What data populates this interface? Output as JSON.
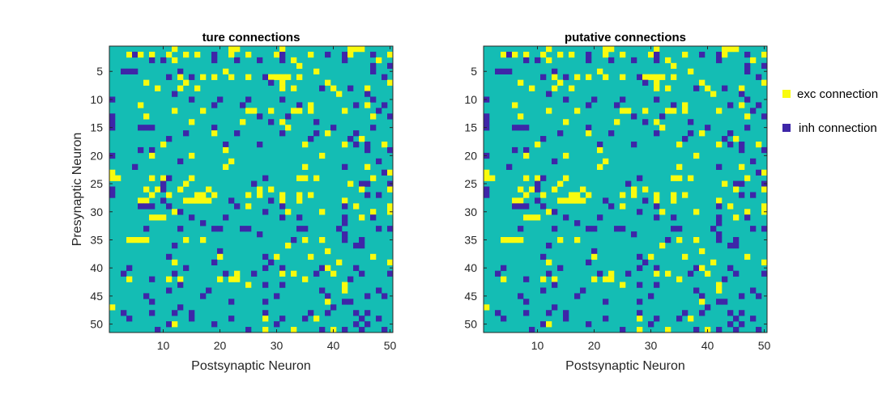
{
  "chart_data": [
    {
      "type": "heatmap",
      "title": "ture connections",
      "xlabel": "Postsynaptic Neuron",
      "ylabel": "Presynaptic Neuron",
      "xlim": [
        1,
        50
      ],
      "ylim": [
        1,
        50
      ],
      "xticks": [
        10,
        20,
        30,
        40,
        50
      ],
      "yticks": [
        5,
        10,
        15,
        20,
        25,
        30,
        35,
        40,
        45,
        50
      ],
      "value_codes": {
        "0": "none",
        "1": "exc connection",
        "-1": "inh connection"
      },
      "matrix": [
        "...........+.........++.......+...........+++.....",
        "...+-+.+..+..+.+..-..+..+....+-....+..-..-+...-..+",
        ".......-.-.+......-...-...-...-.+........-.....+..",
        ".................................+............-..-",
        "..---.......-.......+...............+.........-...",
        "..........-.+.-.+.+..+..+..-++++.+..............-.",
        "......+......+..............-.+.......+..........+",
        "........+...+..+..............+.+....-.+..-..+....",
        "...........-............................+....-....",
        "-.............-....-....-.....-...............-...",
        ".....+............-....-.........-.+.......-.+..-.",
        "...........+....+.......++..+...++.+.....+.....-..",
        "-.....+...................-....-..............+..-",
        "-.............+........+....-.+.....-.............",
        "-....---..........-............+.......-......-...",
        ".............-....+...-.......-.....-.+....-......",
        "..........-........................-......-.+.....",
        ".........+..........-.....-.......+......+.-.-..+.",
        ".....-.-............+........................-...-",
        "-......+......+......................+............",
        "............-........+.........................-..",
        "....-...............+.............+......-...+....",
        "+...............................................-+",
        "++.....+.+-...+............-.....++.+.........+...",
        ".........-...+...........-................+.--...-",
        "-.....+.+-..+....+........+.+...............+....+",
        "-......+..+....++.+.....+.+...+..+.+.........-.-..",
        ".....++..-...+++++...-......-.+..+.......+........",
        ".....---..-...........-.+.....-..........-.+.....+",
        "...........+-..............-...+.....+........+..+",
        ".......+++....-.....-.........-..-.......-..+.-...",
        "................-........................-........",
        "......-.....-.....--...--........--.....-......-.-",
        "..........................-..............-........",
        "...++++......+..+...............-.+..+...-..-.....",
        "...........-...................+...........--.....",
        "...................-..................+...........",
        "..........-........+.......-.+.....+..........+...",
        "...........+......-.........-...........+........+",
        "...-.........-.............-..-......-+....-......",
        "..-........-........-.+..-....+.+...-..+....-....-",
        "...+...-..+.+......+.++...........+.......-.......",
        "............-...........+..-..-..........+........",
        "..........-......-...................-...+.....-..",
        "......-.........-............-........-......-..-.",
        ".......-.............-.....-..........+..--.......",
        "+...........-..........................-..........",
        "..-....-...-..-............-.......-..-....-.-....",
        "...-..........-......-.....+..-...-.+.......-..-..",
        "..........-+......-..........-.............-.-....",
        "........-...............-..+....+....-.+.-..-...-."
      ]
    },
    {
      "type": "heatmap",
      "title": "putative connections",
      "xlabel": "Postsynaptic Neuron",
      "ylabel": "",
      "xlim": [
        1,
        50
      ],
      "ylim": [
        1,
        50
      ],
      "xticks": [
        10,
        20,
        30,
        40,
        50
      ],
      "yticks": [
        5,
        10,
        15,
        20,
        25,
        30,
        35,
        40,
        45,
        50
      ],
      "value_codes": {
        "0": "none",
        "1": "exc connection",
        "-1": "inh connection"
      },
      "matrix": [
        "...........+.........++.......+...........+++.....",
        "...+-+.+..+..+.+..-..+..+....+-....+..-..-+...-..+",
        ".......-.-.+......-...-...-...-.+........-.....+..",
        ".................................+............-..-",
        "..---.......-.......+...............+.........-...",
        "..........-.+.-.+.+..+..+..-++++.+..............-.",
        "......+......+..............-.+.......+..........+",
        "........+...+..+..............+.+....-.+..-..+....",
        "...........-............................+....-....",
        "-.............-....-....-.....-...............-...",
        ".....+............-....-.........-.+.......-.+..-.",
        "...........+....+.......++..+...++.+.....+.....-..",
        "-.....+...................-....-..............+..-",
        "-.............+........+....-.+.....-.............",
        "-....---..........-............+.......-......-...",
        ".............-....+...-.......-.....-.+....-......",
        "..........-........................-......-.+.....",
        ".........+..........-.....-.......+......+.-.-..+.",
        ".....-.-............+........................-...-",
        "-......+......+......................+............",
        "............-........+.........................-..",
        "....-...............+.............+......-...+....",
        "+...............................................-+",
        "++.....+.+-...+............-.....++.+.........+...",
        ".........-...+...........-................+.--...-",
        "-.....+.+-..+....+........+.+...............+....+",
        "-......+..+....++.+.....+.+...+..+.+.........-.-..",
        ".....++..-...+++++...-......-.+..+.......+........",
        ".....---..-...........-.+.....-..........-.+.....+",
        "...........+-..............-...+.....+........+..+",
        ".......+++....-.....-.........-..-.......-..+.-...",
        "................-........................-........",
        "......-.....-.....--...--........--.....-......-.-",
        "..........................-..............-........",
        "...++++......+..+...............-.+..+...-..-.....",
        "...........-...................+...........--.....",
        "...................-..................+...........",
        "..........-........+.......-.+.....+..........+...",
        "...........+......-.........-...........+........+",
        "...-.........-.............-..-......-+....-......",
        "..-........-........-.+..-....+.+...-..+....-....-",
        "...+...-..+.+......+.++...........+.......-.......",
        "............-...........+..-..-..........+........",
        "..........-......-...................-...+.....-..",
        "......-.........-............-........-......-..-.",
        ".......-.............-.....-..........+..--.......",
        "+...........-..........................-..........",
        "..-....-...-..-............-.......-..-....-.-....",
        "...-..........-......-.....+..-...-.+.......-..-..",
        "..........-+......-..........-.............-.-....",
        "........-...............-..+....+....-.+.-..-...-."
      ]
    }
  ],
  "legend": {
    "placement": "right",
    "items": [
      {
        "label": "exc connection",
        "color": "#f9fb0e"
      },
      {
        "label": "inh connection",
        "color": "#3e26a8"
      }
    ]
  },
  "colors": {
    "background": "#14bdb4",
    "exc": "#f9fb0e",
    "inh": "#3e26a8",
    "axis": "#262626"
  }
}
